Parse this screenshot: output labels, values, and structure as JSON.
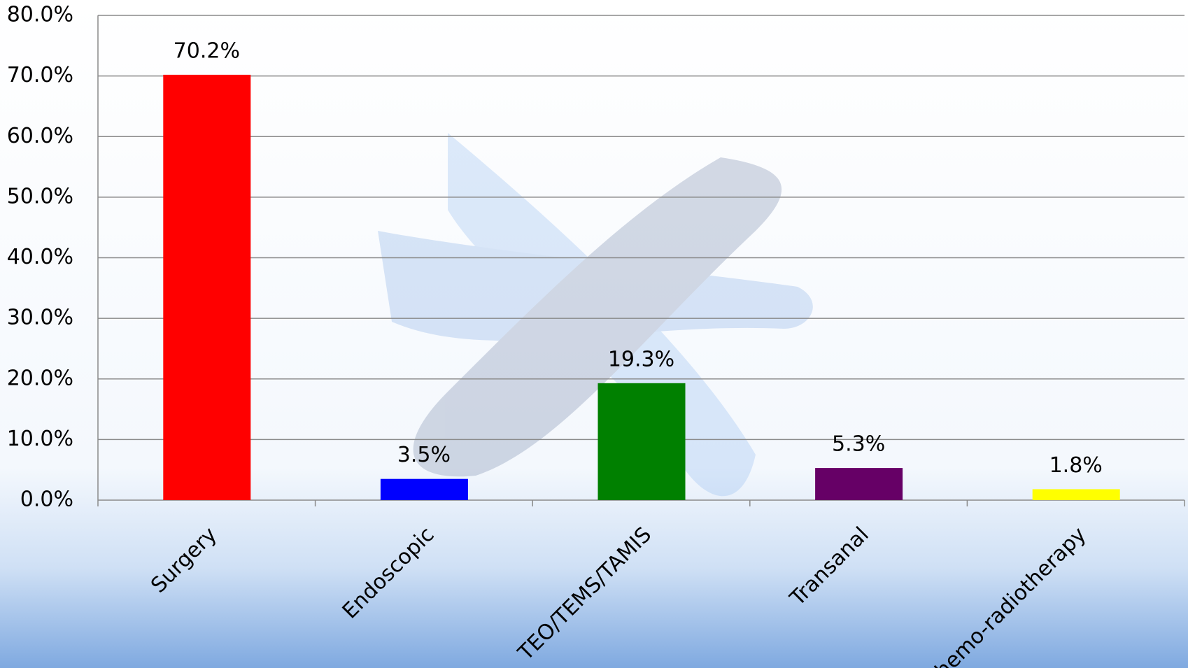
{
  "chart_data": {
    "type": "bar",
    "categories": [
      "Surgery",
      "Endoscopic",
      "TEO/TEMS/TAMIS",
      "Transanal",
      "Chemo-radiotherapy"
    ],
    "values": [
      70.2,
      3.5,
      19.3,
      5.3,
      1.8
    ],
    "value_labels": [
      "70.2%",
      "3.5%",
      "19.3%",
      "5.3%",
      "1.8%"
    ],
    "colors": [
      "#ff0000",
      "#0000ff",
      "#008000",
      "#660066",
      "#ffff00"
    ],
    "ylim": [
      0,
      80
    ],
    "yticks": [
      {
        "value": 0,
        "label": "0.0%"
      },
      {
        "value": 10,
        "label": "10.0%"
      },
      {
        "value": 20,
        "label": "20.0%"
      },
      {
        "value": 30,
        "label": "30.0%"
      },
      {
        "value": 40,
        "label": "40.0%"
      },
      {
        "value": 50,
        "label": "50.0%"
      },
      {
        "value": 60,
        "label": "60.0%"
      },
      {
        "value": 70,
        "label": "70.0%"
      },
      {
        "value": 80,
        "label": "80.0%"
      }
    ],
    "grid": true
  }
}
